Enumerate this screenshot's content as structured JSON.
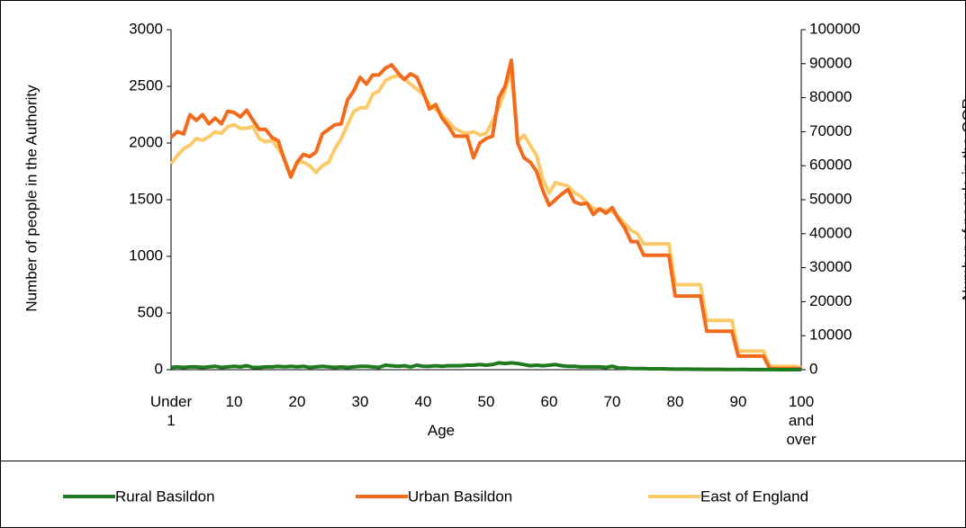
{
  "chart_data": {
    "type": "line",
    "x_label": "Age",
    "y_label": "Number of people in the Authority",
    "y2_label": "Number of people in the GOR",
    "categories": [
      "Under 1",
      null,
      null,
      null,
      null,
      null,
      null,
      null,
      null,
      null,
      "10",
      null,
      null,
      null,
      null,
      null,
      null,
      null,
      null,
      null,
      "20",
      null,
      null,
      null,
      null,
      null,
      null,
      null,
      null,
      null,
      "30",
      null,
      null,
      null,
      null,
      null,
      null,
      null,
      null,
      null,
      "40",
      null,
      null,
      null,
      null,
      null,
      null,
      null,
      null,
      null,
      "50",
      null,
      null,
      null,
      null,
      null,
      null,
      null,
      null,
      null,
      "60",
      null,
      null,
      null,
      null,
      null,
      null,
      null,
      null,
      null,
      "70",
      null,
      null,
      null,
      null,
      null,
      null,
      null,
      null,
      null,
      "80",
      null,
      null,
      null,
      null,
      null,
      null,
      null,
      null,
      null,
      "90",
      null,
      null,
      null,
      null,
      null,
      null,
      null,
      null,
      null,
      "100 and over"
    ],
    "series": [
      {
        "name": "Rural Basildon",
        "color": "#1f7a1f",
        "values": [
          20,
          25,
          20,
          25,
          25,
          20,
          25,
          30,
          20,
          25,
          30,
          25,
          35,
          20,
          20,
          25,
          25,
          30,
          25,
          30,
          25,
          30,
          20,
          25,
          30,
          25,
          20,
          25,
          20,
          25,
          30,
          30,
          25,
          20,
          40,
          35,
          30,
          35,
          25,
          40,
          30,
          30,
          35,
          30,
          35,
          35,
          35,
          40,
          40,
          45,
          40,
          45,
          60,
          55,
          60,
          55,
          45,
          35,
          40,
          35,
          40,
          45,
          35,
          30,
          30,
          25,
          25,
          25,
          25,
          20,
          30,
          15,
          15,
          10,
          10,
          10,
          8,
          8,
          8,
          6,
          5,
          5,
          5,
          4,
          4,
          3,
          3,
          3,
          2,
          2,
          2,
          2,
          1,
          1,
          1,
          1,
          1,
          0,
          0,
          0,
          0
        ]
      },
      {
        "name": "Urban Basildon",
        "color": "#f26b1d",
        "values": [
          2050,
          2100,
          2080,
          2250,
          2200,
          2250,
          2170,
          2220,
          2170,
          2280,
          2270,
          2230,
          2290,
          2200,
          2120,
          2120,
          2050,
          2020,
          1850,
          1700,
          1830,
          1900,
          1880,
          1920,
          2080,
          2120,
          2160,
          2170,
          2380,
          2460,
          2580,
          2520,
          2600,
          2600,
          2660,
          2690,
          2620,
          2560,
          2610,
          2580,
          2450,
          2300,
          2340,
          2220,
          2150,
          2060,
          2060,
          2060,
          1870,
          2000,
          2040,
          2060,
          2400,
          2500,
          2730,
          2000,
          1870,
          1830,
          1750,
          1580,
          1450,
          1500,
          1550,
          1590,
          1480,
          1460,
          1470,
          1370,
          1420,
          1380,
          1430,
          1330,
          1250,
          1130,
          1130,
          1010,
          1010,
          1010,
          1010,
          1010,
          650,
          650,
          650,
          650,
          650,
          340,
          340,
          340,
          340,
          340,
          120,
          120,
          120,
          120,
          120,
          10,
          10,
          10,
          10,
          10,
          10
        ]
      },
      {
        "name": "East of England",
        "color": "#fdca6a",
        "axis": "y2",
        "values": [
          60500,
          63000,
          65000,
          66000,
          68000,
          67500,
          68500,
          70000,
          69500,
          71500,
          72000,
          71000,
          71000,
          71500,
          68000,
          67000,
          67500,
          65000,
          62000,
          57000,
          61000,
          61000,
          60000,
          58000,
          60000,
          61000,
          65000,
          68000,
          72000,
          76000,
          77000,
          77000,
          81000,
          82000,
          85000,
          86000,
          86500,
          85500,
          84000,
          82500,
          81000,
          78000,
          76500,
          75000,
          73000,
          71000,
          70000,
          69500,
          70000,
          69000,
          69500,
          73000,
          77000,
          82000,
          88000,
          67000,
          69000,
          66000,
          63000,
          56000,
          52000,
          55000,
          54500,
          54000,
          52000,
          51000,
          49000,
          47500,
          47000,
          47000,
          46500,
          45000,
          43000,
          41000,
          40000,
          37000,
          37000,
          37000,
          37000,
          37000,
          25000,
          25000,
          25000,
          25000,
          25000,
          14500,
          14500,
          14500,
          14500,
          14500,
          5500,
          5500,
          5500,
          5500,
          5500,
          1000,
          1000,
          1000,
          1000,
          1000,
          500
        ]
      }
    ],
    "ylim": [
      0,
      3000
    ],
    "yticks": [
      0,
      500,
      1000,
      1500,
      2000,
      2500,
      3000
    ],
    "y2lim": [
      0,
      100000
    ],
    "y2ticks": [
      0,
      10000,
      20000,
      30000,
      40000,
      50000,
      60000,
      70000,
      80000,
      90000,
      100000
    ],
    "legend": "bottom"
  }
}
